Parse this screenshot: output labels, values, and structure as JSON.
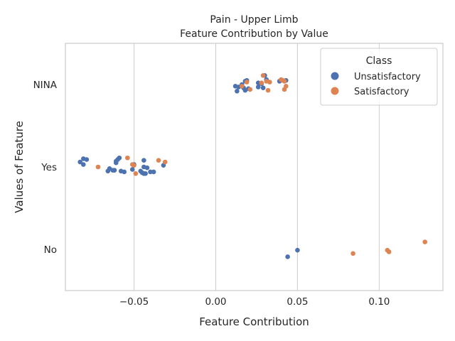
{
  "chart_data": {
    "type": "scatter",
    "title": "Pain - Upper Limb",
    "subtitle": "Feature Contribution by Value",
    "xlabel": "Feature Contribution",
    "ylabel": "Values of Feature",
    "xlim": [
      -0.092,
      0.139
    ],
    "x_ticks": [
      "−0.05",
      "0.00",
      "0.05",
      "0.10"
    ],
    "x_tick_values": [
      -0.05,
      0.0,
      0.05,
      0.1
    ],
    "categories": [
      "NINA",
      "Yes",
      "No"
    ],
    "grid": true,
    "legend": {
      "title": "Class",
      "position": "top-right"
    },
    "series": [
      {
        "name": "Unsatisfactory",
        "color": "#4c72b0",
        "points": [
          {
            "x": 0.03,
            "category": "NINA",
            "jitter": 0.11
          },
          {
            "x": 0.019,
            "category": "NINA",
            "jitter": 0.05
          },
          {
            "x": 0.018,
            "category": "NINA",
            "jitter": 0.04
          },
          {
            "x": 0.039,
            "category": "NINA",
            "jitter": 0.04
          },
          {
            "x": 0.043,
            "category": "NINA",
            "jitter": 0.05
          },
          {
            "x": 0.026,
            "category": "NINA",
            "jitter": 0.02
          },
          {
            "x": 0.028,
            "category": "NINA",
            "jitter": 0.01
          },
          {
            "x": 0.016,
            "category": "NINA",
            "jitter": 0.0
          },
          {
            "x": 0.012,
            "category": "NINA",
            "jitter": -0.02
          },
          {
            "x": 0.014,
            "category": "NINA",
            "jitter": -0.03
          },
          {
            "x": 0.017,
            "category": "NINA",
            "jitter": -0.04
          },
          {
            "x": 0.02,
            "category": "NINA",
            "jitter": -0.05
          },
          {
            "x": 0.013,
            "category": "NINA",
            "jitter": -0.08
          },
          {
            "x": 0.026,
            "category": "NINA",
            "jitter": -0.03
          },
          {
            "x": 0.029,
            "category": "NINA",
            "jitter": -0.04
          },
          {
            "x": 0.018,
            "category": "NINA",
            "jitter": -0.07
          },
          {
            "x": 0.031,
            "category": "NINA",
            "jitter": 0.06
          },
          {
            "x": -0.081,
            "category": "Yes",
            "jitter": 0.1
          },
          {
            "x": -0.079,
            "category": "Yes",
            "jitter": 0.09
          },
          {
            "x": -0.083,
            "category": "Yes",
            "jitter": 0.06
          },
          {
            "x": -0.081,
            "category": "Yes",
            "jitter": 0.03
          },
          {
            "x": -0.059,
            "category": "Yes",
            "jitter": 0.11
          },
          {
            "x": -0.06,
            "category": "Yes",
            "jitter": 0.09
          },
          {
            "x": -0.061,
            "category": "Yes",
            "jitter": 0.07
          },
          {
            "x": -0.061,
            "category": "Yes",
            "jitter": 0.05
          },
          {
            "x": -0.044,
            "category": "Yes",
            "jitter": 0.08
          },
          {
            "x": -0.032,
            "category": "Yes",
            "jitter": 0.02
          },
          {
            "x": -0.05,
            "category": "Yes",
            "jitter": 0.03
          },
          {
            "x": -0.044,
            "category": "Yes",
            "jitter": 0.0
          },
          {
            "x": -0.042,
            "category": "Yes",
            "jitter": -0.01
          },
          {
            "x": -0.051,
            "category": "Yes",
            "jitter": -0.03
          },
          {
            "x": -0.062,
            "category": "Yes",
            "jitter": -0.04
          },
          {
            "x": -0.065,
            "category": "Yes",
            "jitter": -0.02
          },
          {
            "x": -0.063,
            "category": "Yes",
            "jitter": -0.04
          },
          {
            "x": -0.066,
            "category": "Yes",
            "jitter": -0.05
          },
          {
            "x": -0.058,
            "category": "Yes",
            "jitter": -0.05
          },
          {
            "x": -0.056,
            "category": "Yes",
            "jitter": -0.06
          },
          {
            "x": -0.046,
            "category": "Yes",
            "jitter": -0.05
          },
          {
            "x": -0.045,
            "category": "Yes",
            "jitter": -0.07
          },
          {
            "x": -0.043,
            "category": "Yes",
            "jitter": -0.08
          },
          {
            "x": -0.04,
            "category": "Yes",
            "jitter": -0.06
          },
          {
            "x": -0.038,
            "category": "Yes",
            "jitter": -0.06
          },
          {
            "x": -0.044,
            "category": "Yes",
            "jitter": -0.08
          },
          {
            "x": 0.05,
            "category": "No",
            "jitter": -0.01
          },
          {
            "x": 0.044,
            "category": "No",
            "jitter": -0.09
          }
        ]
      },
      {
        "name": "Satisfactory",
        "color": "#dd8452",
        "points": [
          {
            "x": 0.029,
            "category": "NINA",
            "jitter": 0.11
          },
          {
            "x": 0.041,
            "category": "NINA",
            "jitter": 0.05
          },
          {
            "x": 0.04,
            "category": "NINA",
            "jitter": 0.06
          },
          {
            "x": 0.042,
            "category": "NINA",
            "jitter": 0.04
          },
          {
            "x": 0.031,
            "category": "NINA",
            "jitter": 0.04
          },
          {
            "x": 0.033,
            "category": "NINA",
            "jitter": 0.03
          },
          {
            "x": 0.028,
            "category": "NINA",
            "jitter": 0.02
          },
          {
            "x": 0.019,
            "category": "NINA",
            "jitter": 0.03
          },
          {
            "x": 0.043,
            "category": "NINA",
            "jitter": -0.02
          },
          {
            "x": 0.042,
            "category": "NINA",
            "jitter": -0.06
          },
          {
            "x": 0.032,
            "category": "NINA",
            "jitter": -0.07
          },
          {
            "x": 0.021,
            "category": "NINA",
            "jitter": -0.06
          },
          {
            "x": 0.016,
            "category": "NINA",
            "jitter": -0.02
          },
          {
            "x": -0.054,
            "category": "Yes",
            "jitter": 0.11
          },
          {
            "x": -0.035,
            "category": "Yes",
            "jitter": 0.08
          },
          {
            "x": -0.031,
            "category": "Yes",
            "jitter": 0.06
          },
          {
            "x": -0.051,
            "category": "Yes",
            "jitter": 0.03
          },
          {
            "x": -0.05,
            "category": "Yes",
            "jitter": 0.02
          },
          {
            "x": -0.072,
            "category": "Yes",
            "jitter": 0.0
          },
          {
            "x": -0.049,
            "category": "Yes",
            "jitter": -0.08
          },
          {
            "x": 0.128,
            "category": "No",
            "jitter": 0.09
          },
          {
            "x": 0.105,
            "category": "No",
            "jitter": -0.01
          },
          {
            "x": 0.106,
            "category": "No",
            "jitter": -0.03
          },
          {
            "x": 0.084,
            "category": "No",
            "jitter": -0.05
          }
        ]
      }
    ]
  }
}
